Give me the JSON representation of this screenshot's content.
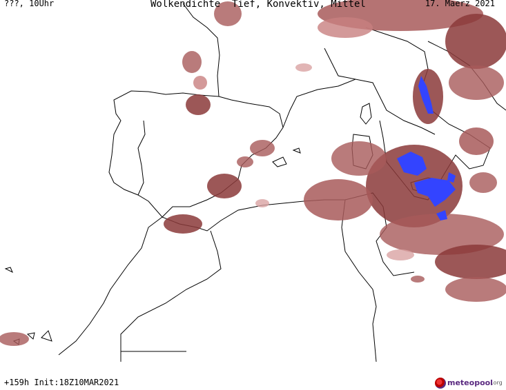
{
  "header": {
    "left": "???, 10Uhr",
    "title": "Wolkendichte  Tief, Konvektiv, Mittel",
    "date": "17. Maerz 2021"
  },
  "footer": {
    "run_info": "+159h Init:18Z10MAR2021",
    "brand_name": "meteopool",
    "brand_tld": ".org"
  },
  "colors": {
    "cloud_dark": "#8b3a3a",
    "cloud_mid": "#a85a5a",
    "cloud_light": "#d9a3a3",
    "convective": "#3344ff",
    "coast": "#000000",
    "background": "#ffffff"
  }
}
